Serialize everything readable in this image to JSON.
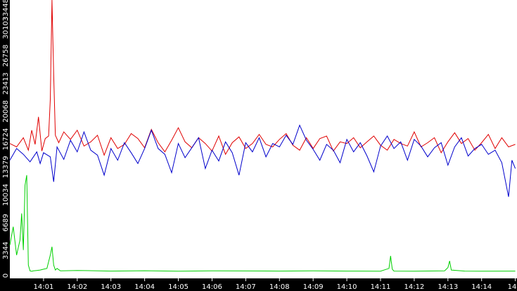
{
  "colors": {
    "background": "#ffffff",
    "axis_band": "#000000",
    "tick_text": "#ffffff",
    "red": "#e00000",
    "blue": "#0000cc",
    "green": "#00d000"
  },
  "chart_data": {
    "type": "line",
    "ylim": [
      0,
      33448
    ],
    "y_ticks": [
      0,
      3344,
      6689,
      10034,
      13379,
      16724,
      20068,
      23413,
      26758,
      30103,
      33448
    ],
    "x_labels": [
      "14:01",
      "14:02",
      "14:03",
      "14:04",
      "14:05",
      "14:06",
      "14:07",
      "14:08",
      "14:09",
      "14:10",
      "14:11",
      "14:12",
      "14:13",
      "14:14",
      "14"
    ],
    "xlim": [
      0,
      15.05
    ],
    "grid": false,
    "series": [
      {
        "color": "#e00000",
        "x": [
          0.0,
          0.2,
          0.4,
          0.55,
          0.65,
          0.75,
          0.85,
          0.95,
          1.05,
          1.15,
          1.2,
          1.25,
          1.3,
          1.35,
          1.45,
          1.6,
          1.8,
          2.0,
          2.2,
          2.4,
          2.6,
          2.8,
          3.0,
          3.2,
          3.4,
          3.6,
          3.8,
          4.0,
          4.2,
          4.4,
          4.6,
          4.8,
          5.0,
          5.2,
          5.4,
          5.6,
          5.8,
          6.0,
          6.2,
          6.4,
          6.6,
          6.8,
          7.0,
          7.2,
          7.4,
          7.6,
          7.8,
          8.0,
          8.2,
          8.4,
          8.6,
          8.8,
          9.0,
          9.2,
          9.4,
          9.6,
          9.8,
          10.0,
          10.2,
          10.4,
          10.6,
          10.8,
          11.0,
          11.2,
          11.4,
          11.6,
          11.8,
          12.0,
          12.2,
          12.4,
          12.6,
          12.8,
          13.0,
          13.2,
          13.4,
          13.6,
          13.8,
          14.0,
          14.2,
          14.4,
          14.6,
          14.8,
          15.0
        ],
        "y": [
          16200,
          15800,
          16900,
          15400,
          17800,
          16100,
          19400,
          15300,
          16800,
          17100,
          21500,
          33448,
          24500,
          17200,
          16300,
          17600,
          16700,
          17800,
          15900,
          16400,
          17200,
          14800,
          16900,
          15600,
          16100,
          17400,
          16800,
          15700,
          17900,
          16300,
          15200,
          16600,
          18100,
          16400,
          15700,
          16900,
          16200,
          15300,
          17100,
          14900,
          16300,
          17000,
          15600,
          16200,
          17300,
          16100,
          15800,
          16700,
          17400,
          16000,
          15400,
          16900,
          15600,
          16800,
          17100,
          15300,
          16400,
          16200,
          16900,
          15700,
          16400,
          17100,
          16000,
          15400,
          16700,
          16200,
          15900,
          17600,
          15800,
          16300,
          16900,
          15100,
          16400,
          17500,
          16200,
          16800,
          15400,
          16300,
          17300,
          15600,
          16900,
          15800,
          16100
        ]
      },
      {
        "color": "#0000cc",
        "x": [
          0.0,
          0.2,
          0.4,
          0.6,
          0.8,
          0.9,
          1.0,
          1.2,
          1.3,
          1.4,
          1.6,
          1.8,
          2.0,
          2.2,
          2.4,
          2.6,
          2.8,
          3.0,
          3.2,
          3.4,
          3.6,
          3.8,
          4.0,
          4.2,
          4.4,
          4.6,
          4.8,
          5.0,
          5.2,
          5.4,
          5.6,
          5.8,
          6.0,
          6.2,
          6.4,
          6.6,
          6.8,
          7.0,
          7.2,
          7.4,
          7.6,
          7.8,
          8.0,
          8.2,
          8.4,
          8.6,
          8.8,
          9.0,
          9.2,
          9.4,
          9.6,
          9.8,
          10.0,
          10.2,
          10.4,
          10.6,
          10.8,
          11.0,
          11.2,
          11.4,
          11.6,
          11.8,
          12.0,
          12.2,
          12.4,
          12.6,
          12.8,
          13.0,
          13.2,
          13.4,
          13.6,
          13.8,
          14.0,
          14.2,
          14.4,
          14.6,
          14.8,
          14.9,
          15.0
        ],
        "y": [
          14200,
          15600,
          14900,
          14000,
          15200,
          13800,
          15100,
          14600,
          11600,
          15800,
          14300,
          16600,
          15200,
          17600,
          15400,
          14800,
          12400,
          15600,
          14200,
          16300,
          15100,
          13800,
          15600,
          17800,
          15600,
          14900,
          12700,
          16200,
          14500,
          15700,
          16900,
          13200,
          15400,
          14100,
          16400,
          15100,
          12400,
          16300,
          15200,
          16900,
          14600,
          16200,
          15800,
          17200,
          16100,
          18400,
          16600,
          15500,
          14200,
          16100,
          15400,
          13900,
          16700,
          15200,
          16300,
          14700,
          12800,
          15900,
          17100,
          15600,
          16400,
          14200,
          16700,
          15900,
          14600,
          15700,
          16300,
          13600,
          15800,
          16900,
          14700,
          15600,
          16100,
          14900,
          15400,
          13900,
          9800,
          14200,
          13200
        ]
      },
      {
        "color": "#00d000",
        "x": [
          0.0,
          0.1,
          0.2,
          0.3,
          0.35,
          0.4,
          0.45,
          0.5,
          0.55,
          0.6,
          0.65,
          0.7,
          0.8,
          0.9,
          1.0,
          1.1,
          1.2,
          1.25,
          1.3,
          1.35,
          1.4,
          1.5,
          2.0,
          3.0,
          4.0,
          5.0,
          6.0,
          7.0,
          8.0,
          9.0,
          10.0,
          11.0,
          11.25,
          11.3,
          11.35,
          11.4,
          12.0,
          12.9,
          13.0,
          13.05,
          13.1,
          13.5,
          14.0,
          15.0
        ],
        "y": [
          4000,
          6200,
          2800,
          4600,
          7800,
          3400,
          11200,
          12400,
          1600,
          900,
          850,
          900,
          950,
          1000,
          1100,
          1200,
          2800,
          3800,
          1600,
          1000,
          1200,
          900,
          950,
          880,
          920,
          870,
          900,
          890,
          880,
          900,
          880,
          870,
          1200,
          2700,
          1100,
          880,
          870,
          900,
          1300,
          2100,
          1000,
          880,
          870,
          880
        ]
      }
    ]
  }
}
